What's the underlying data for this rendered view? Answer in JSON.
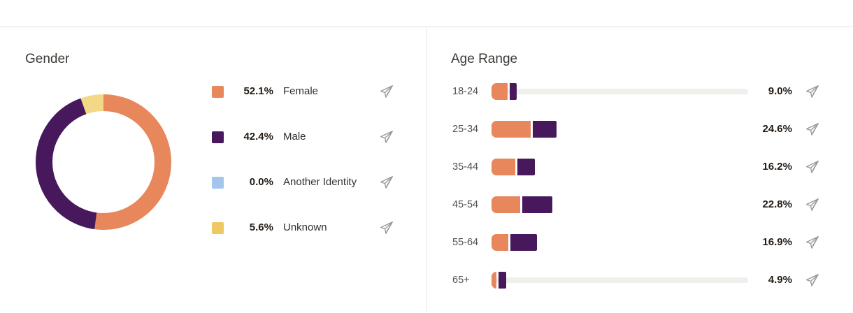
{
  "page": {
    "background": "#ffffff",
    "rule_color": "#e6e4e1",
    "divider_color": "#e6e4e1"
  },
  "gender": {
    "title": "Gender",
    "legend": [
      {
        "value": "52.1%",
        "label": "Female",
        "color": "#e8865c"
      },
      {
        "value": "42.4%",
        "label": "Male",
        "color": "#47195c"
      },
      {
        "value": "0.0%",
        "label": "Another Identity",
        "color": "#a3c7ec"
      },
      {
        "value": "5.6%",
        "label": "Unknown",
        "color": "#eec863"
      }
    ]
  },
  "age_range": {
    "title": "Age Range",
    "rows": [
      {
        "label": "18-24",
        "value": "9.0%",
        "track_visible": true
      },
      {
        "label": "25-34",
        "value": "24.6%",
        "track_visible": false
      },
      {
        "label": "35-44",
        "value": "16.2%",
        "track_visible": false
      },
      {
        "label": "45-54",
        "value": "22.8%",
        "track_visible": false
      },
      {
        "label": "55-64",
        "value": "16.9%",
        "track_visible": false
      },
      {
        "label": "65+",
        "value": "4.9%",
        "track_visible": true
      }
    ]
  },
  "icons": {
    "send": "paper-plane-icon"
  },
  "colors": {
    "female": "#e8865c",
    "male": "#47195c",
    "another_identity": "#a3c7ec",
    "unknown_swatch": "#eec863",
    "unknown_donut": "#f3d987",
    "bar_track": "#f1efec",
    "icon_gray": "#9b9998",
    "heading": "#3d3a36",
    "text": "#241c15",
    "muted_label": "#55514c"
  },
  "chart_data": [
    {
      "type": "pie",
      "donut": true,
      "title": "Gender",
      "start_angle_deg": 0,
      "clockwise": true,
      "slices": [
        {
          "label": "Female",
          "pct": 52.1,
          "color": "#e8865c"
        },
        {
          "label": "Male",
          "pct": 42.4,
          "color": "#47195c"
        },
        {
          "label": "Another Identity",
          "pct": 0.0,
          "color": "#a3c7ec"
        },
        {
          "label": "Unknown",
          "pct": 5.6,
          "color": "#f3d987"
        }
      ]
    },
    {
      "type": "bar",
      "orientation": "horizontal",
      "stacked": true,
      "title": "Age Range",
      "categories": [
        "18-24",
        "25-34",
        "35-44",
        "45-54",
        "55-64",
        "65+"
      ],
      "totals": [
        9.0,
        24.6,
        16.2,
        22.8,
        16.9,
        4.9
      ],
      "value_labels": [
        "9.0%",
        "24.6%",
        "16.2%",
        "22.8%",
        "16.9%",
        "4.9%"
      ],
      "series": [
        {
          "name": "Female",
          "color": "#e8865c",
          "values": [
            6.4,
            15.3,
            9.3,
            11.3,
            6.6,
            1.9
          ]
        },
        {
          "name": "Male",
          "color": "#47195c",
          "values": [
            2.6,
            9.3,
            6.9,
            11.5,
            10.3,
            3.0
          ]
        }
      ],
      "xlim": [
        0,
        100
      ],
      "note": "gender split per age bucket estimated from segment lengths; track spans 0-100%"
    }
  ]
}
